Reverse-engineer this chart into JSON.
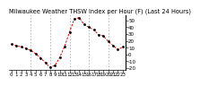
{
  "title": "Milwaukee Weather THSW Index per Hour (F) (Last 24 Hours)",
  "hours": [
    0,
    1,
    2,
    3,
    4,
    5,
    6,
    7,
    8,
    9,
    10,
    11,
    12,
    13,
    14,
    15,
    16,
    17,
    18,
    19,
    20,
    21,
    22,
    23
  ],
  "values": [
    15,
    13,
    11,
    9,
    6,
    1,
    -5,
    -12,
    -19,
    -16,
    -4,
    12,
    33,
    52,
    54,
    44,
    40,
    36,
    29,
    27,
    19,
    13,
    7,
    11
  ],
  "line_color": "#dd0000",
  "marker_color": "#000000",
  "bg_color": "#ffffff",
  "grid_color": "#888888",
  "title_fontsize": 4.8,
  "tick_fontsize": 4.0,
  "ylim": [
    -22,
    58
  ],
  "yticks": [
    50,
    40,
    30,
    20,
    10,
    0,
    -10,
    -20
  ],
  "vgrid_positions": [
    4,
    8,
    12,
    16,
    20
  ]
}
